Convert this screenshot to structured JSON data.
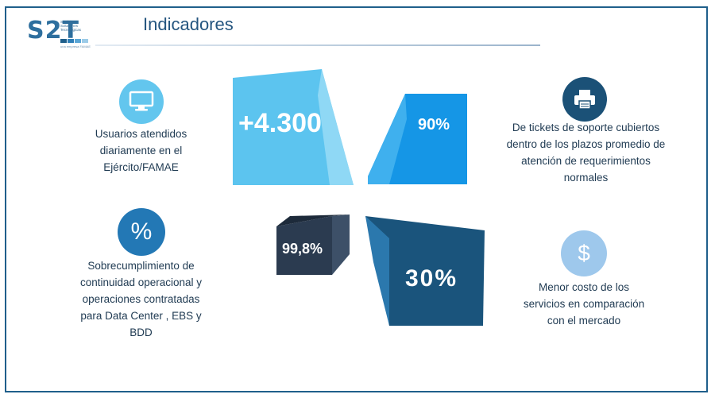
{
  "header": {
    "title": "Indicadores",
    "logo": {
      "brand": "S2T",
      "subtitle_lines": [
        "Servicios y",
        "Soluciones",
        "Tecnológicas"
      ],
      "tagline": "una empresa FAMAE"
    }
  },
  "indicators": [
    {
      "value": "+4.300",
      "label_lines": [
        "Usuarios atendidos",
        "diariamente en el",
        "Ejército/FAMAE"
      ],
      "icon": "monitor-icon",
      "color": "#5cc4ef"
    },
    {
      "value": "90%",
      "label_lines": [
        "De tickets de soporte cubiertos",
        "dentro de los plazos promedio de",
        "atención de requerimientos",
        "normales"
      ],
      "icon": "printer-icon",
      "color": "#1596e6"
    },
    {
      "value": "99,8%",
      "label_lines": [
        "Sobrecumplimiento de",
        "continuidad operacional y",
        "operaciones contratadas",
        "para Data Center , EBS y",
        "BDD"
      ],
      "icon": "percent-icon",
      "color": "#2b3b50"
    },
    {
      "value": "30%",
      "label_lines": [
        "Menor costo de los",
        "servicios en comparación",
        "con el mercado"
      ],
      "icon": "dollar-icon",
      "color": "#1a547c"
    }
  ],
  "icons": {
    "percent_symbol": "%",
    "dollar_symbol": "$"
  },
  "colors": {
    "frame": "#1f5f8b",
    "title": "#24557f",
    "icon_light": "#63c6ee",
    "icon_dark": "#1b5177",
    "icon_mid": "#2378b5",
    "icon_pale": "#9ec8ec"
  }
}
